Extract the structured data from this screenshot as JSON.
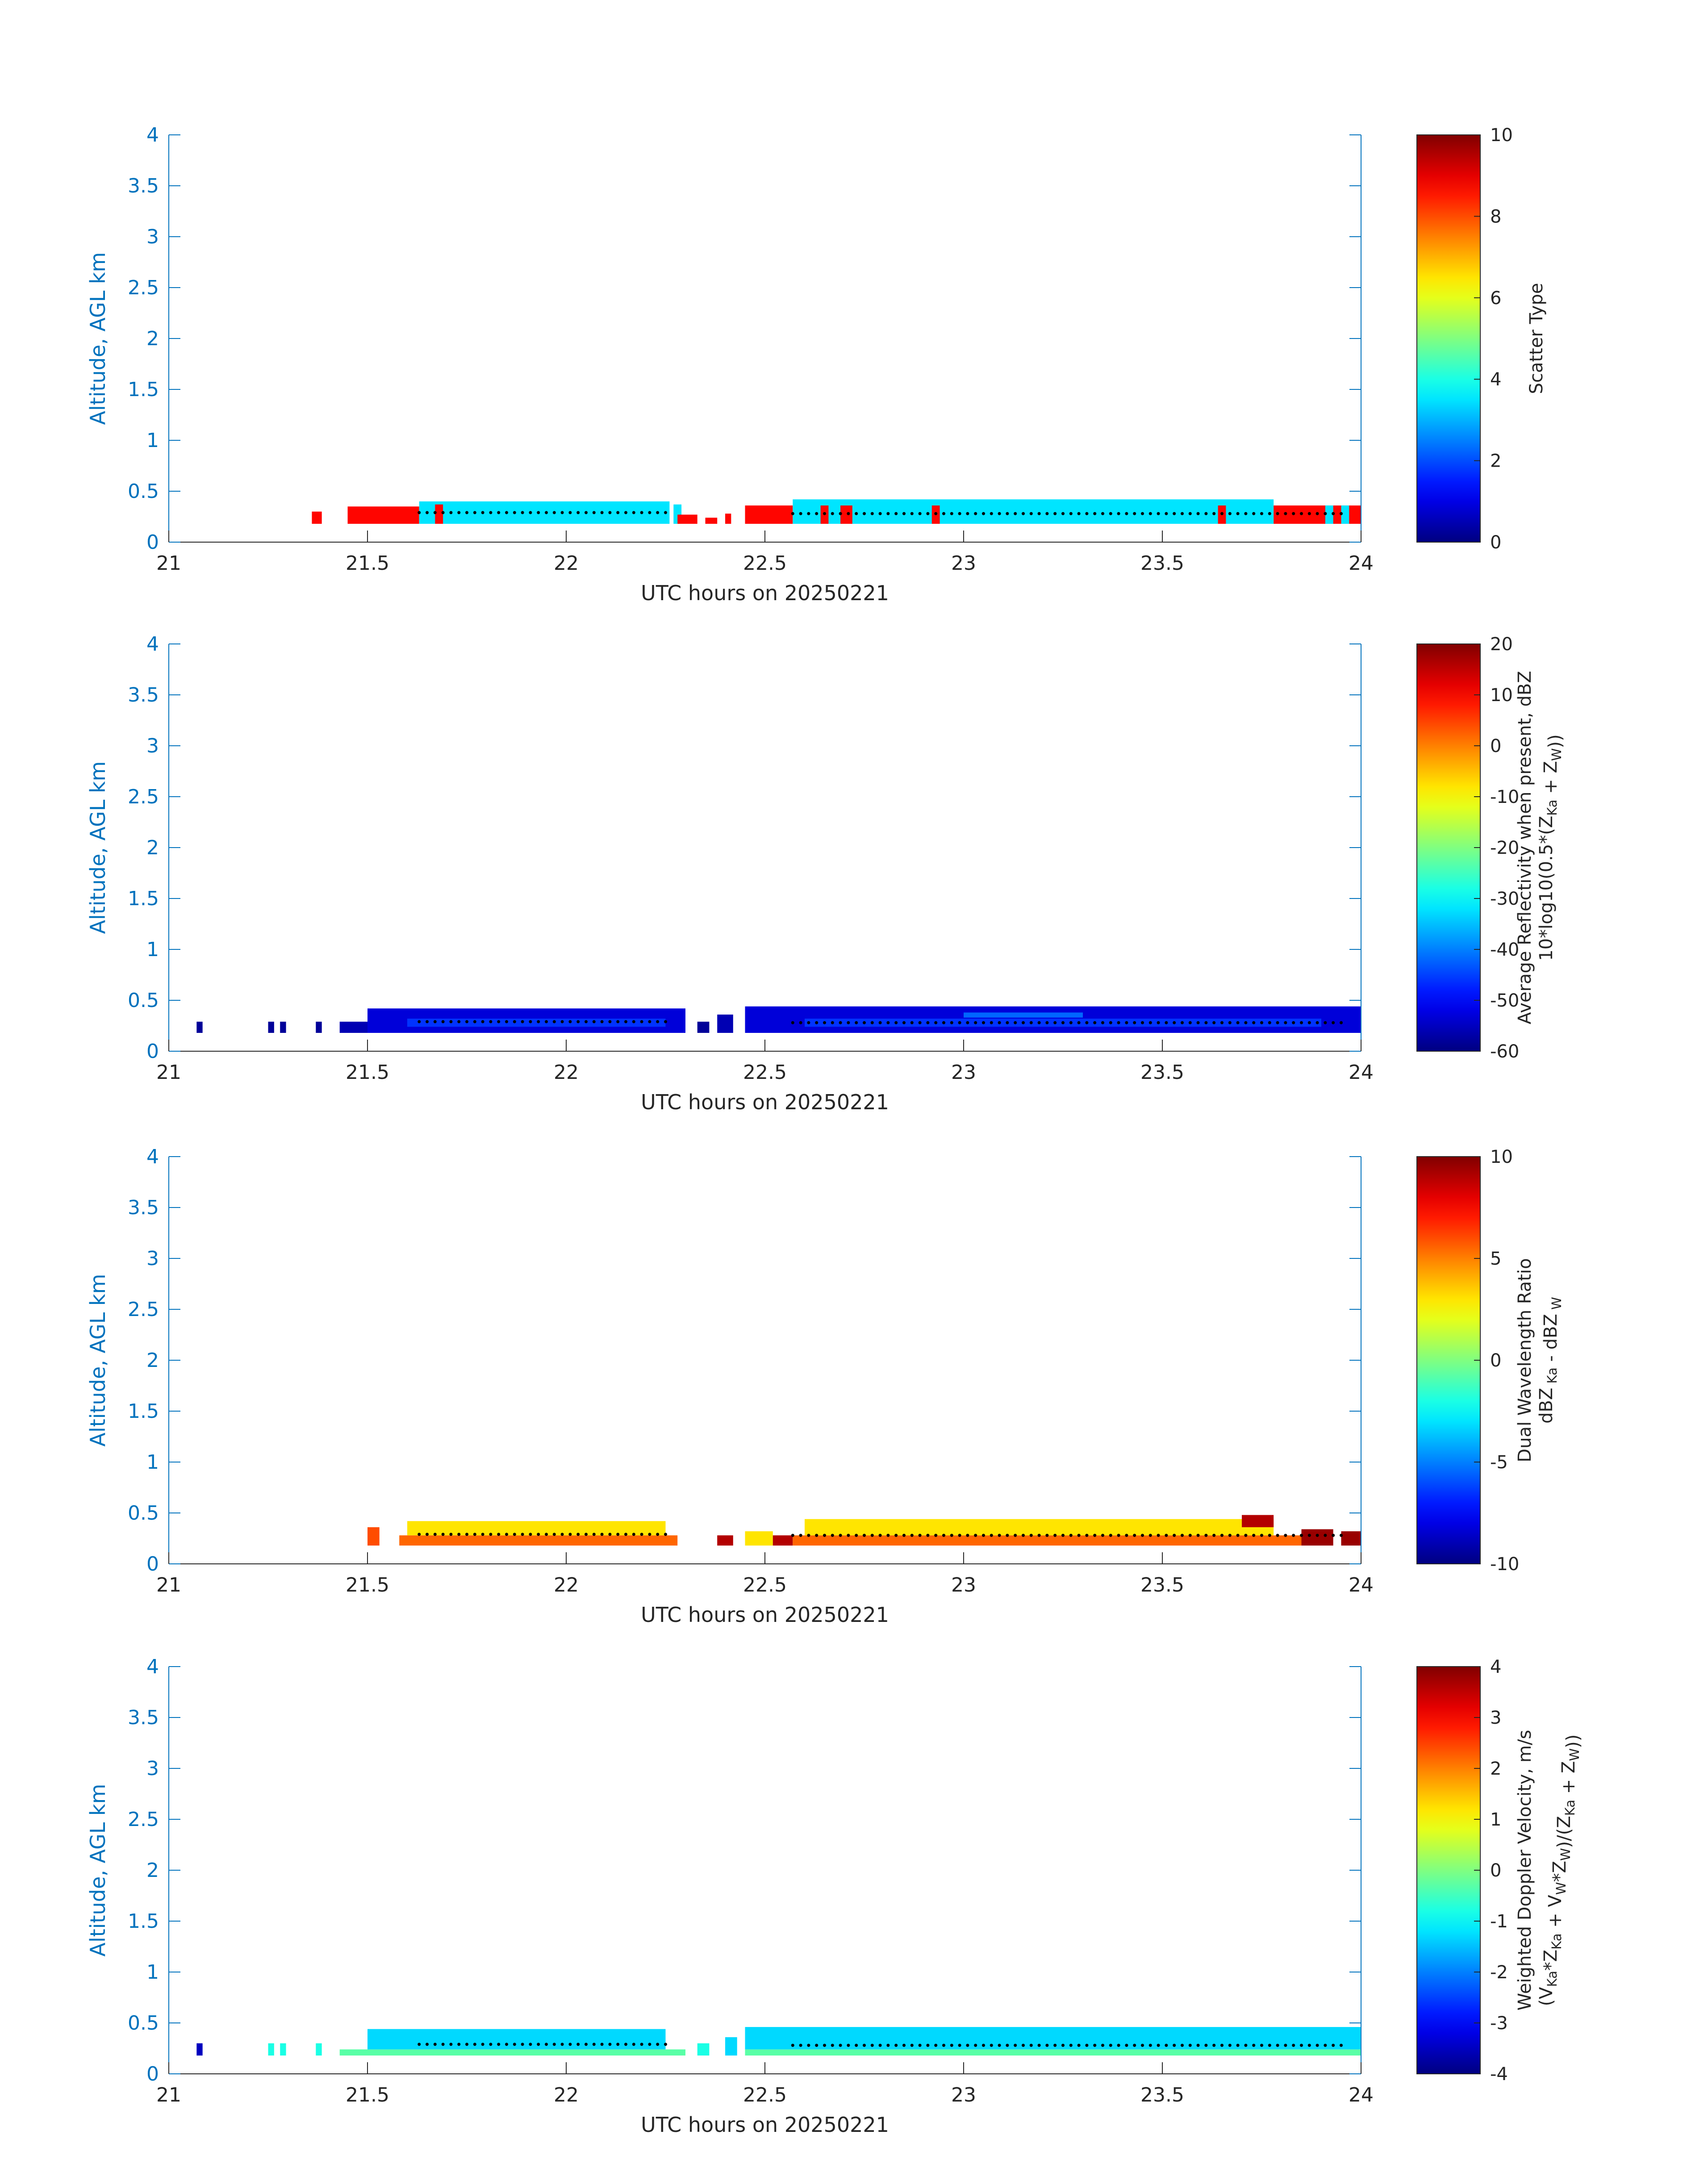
{
  "chart_data": [
    {
      "type": "heatmap",
      "xlabel": "UTC hours on 20250221",
      "ylabel": "Altitude, AGL km",
      "xlim": [
        21,
        24
      ],
      "ylim": [
        0,
        4
      ],
      "xticks": [
        "21",
        "21.5",
        "22",
        "22.5",
        "23",
        "23.5",
        "24"
      ],
      "yticks": [
        "0",
        "0.5",
        "1",
        "1.5",
        "2",
        "2.5",
        "3",
        "3.5",
        "4"
      ],
      "colorbar": {
        "colormap": "jet",
        "range": [
          0,
          10
        ],
        "ticks": [
          "0",
          "2",
          "4",
          "6",
          "8",
          "10"
        ],
        "label_lines": [
          [
            {
              "t": "Scatter Type"
            }
          ]
        ]
      },
      "segments": [
        {
          "x0": 21.36,
          "x1": 21.385,
          "bottom": 0.18,
          "top": 0.3,
          "value": 8.7
        },
        {
          "x0": 21.45,
          "x1": 21.63,
          "bottom": 0.18,
          "top": 0.35,
          "value": 8.7
        },
        {
          "x0": 21.63,
          "x1": 22.26,
          "bottom": 0.18,
          "top": 0.4,
          "value": 3.5
        },
        {
          "x0": 21.67,
          "x1": 21.69,
          "bottom": 0.18,
          "top": 0.37,
          "value": 8.7
        },
        {
          "x0": 22.27,
          "x1": 22.29,
          "bottom": 0.18,
          "top": 0.37,
          "value": 3.5
        },
        {
          "x0": 22.28,
          "x1": 22.33,
          "bottom": 0.18,
          "top": 0.27,
          "value": 8.7
        },
        {
          "x0": 22.35,
          "x1": 22.38,
          "bottom": 0.18,
          "top": 0.24,
          "value": 8.7
        },
        {
          "x0": 22.4,
          "x1": 22.415,
          "bottom": 0.18,
          "top": 0.28,
          "value": 8.7
        },
        {
          "x0": 22.45,
          "x1": 22.57,
          "bottom": 0.18,
          "top": 0.36,
          "value": 8.7
        },
        {
          "x0": 22.57,
          "x1": 23.78,
          "bottom": 0.18,
          "top": 0.42,
          "value": 3.5
        },
        {
          "x0": 22.64,
          "x1": 22.66,
          "bottom": 0.18,
          "top": 0.36,
          "value": 8.7
        },
        {
          "x0": 22.69,
          "x1": 22.72,
          "bottom": 0.18,
          "top": 0.36,
          "value": 8.7
        },
        {
          "x0": 22.92,
          "x1": 22.94,
          "bottom": 0.18,
          "top": 0.36,
          "value": 8.7
        },
        {
          "x0": 23.64,
          "x1": 23.66,
          "bottom": 0.18,
          "top": 0.36,
          "value": 8.7
        },
        {
          "x0": 23.78,
          "x1": 24.0,
          "bottom": 0.18,
          "top": 0.36,
          "value": 8.7
        },
        {
          "x0": 23.91,
          "x1": 23.93,
          "bottom": 0.18,
          "top": 0.36,
          "value": 3.5
        },
        {
          "x0": 23.95,
          "x1": 23.97,
          "bottom": 0.18,
          "top": 0.36,
          "value": 3.5
        }
      ],
      "mean_height": [
        {
          "x0": 21.63,
          "x1": 22.26,
          "y": 0.29
        },
        {
          "x0": 22.57,
          "x1": 23.95,
          "y": 0.28
        }
      ]
    },
    {
      "type": "heatmap",
      "xlabel": "UTC hours on 20250221",
      "ylabel": "Altitude, AGL km",
      "xlim": [
        21,
        24
      ],
      "ylim": [
        0,
        4
      ],
      "xticks": [
        "21",
        "21.5",
        "22",
        "22.5",
        "23",
        "23.5",
        "24"
      ],
      "yticks": [
        "0",
        "0.5",
        "1",
        "1.5",
        "2",
        "2.5",
        "3",
        "3.5",
        "4"
      ],
      "colorbar": {
        "colormap": "jet",
        "range": [
          -60,
          20
        ],
        "ticks": [
          "-60",
          "-50",
          "-40",
          "-30",
          "-20",
          "-10",
          "0",
          "10",
          "20"
        ],
        "label_lines": [
          [
            {
              "t": "Average Reflectivity when present, dBZ"
            }
          ],
          [
            {
              "t": "10*log10(0.5*(Z"
            },
            {
              "t": "Ka",
              "sub": true
            },
            {
              "t": " + Z"
            },
            {
              "t": "W",
              "sub": true
            },
            {
              "t": "))"
            }
          ]
        ]
      },
      "segments": [
        {
          "x0": 21.07,
          "x1": 21.085,
          "bottom": 0.18,
          "top": 0.29,
          "value": -58
        },
        {
          "x0": 21.25,
          "x1": 21.265,
          "bottom": 0.18,
          "top": 0.29,
          "value": -58
        },
        {
          "x0": 21.28,
          "x1": 21.295,
          "bottom": 0.18,
          "top": 0.29,
          "value": -58
        },
        {
          "x0": 21.37,
          "x1": 21.385,
          "bottom": 0.18,
          "top": 0.29,
          "value": -58
        },
        {
          "x0": 21.43,
          "x1": 21.5,
          "bottom": 0.18,
          "top": 0.29,
          "value": -56
        },
        {
          "x0": 21.5,
          "x1": 22.3,
          "bottom": 0.18,
          "top": 0.42,
          "value": -53
        },
        {
          "x0": 21.6,
          "x1": 22.25,
          "bottom": 0.24,
          "top": 0.32,
          "value": -46
        },
        {
          "x0": 22.33,
          "x1": 22.36,
          "bottom": 0.18,
          "top": 0.29,
          "value": -58
        },
        {
          "x0": 22.38,
          "x1": 22.42,
          "bottom": 0.18,
          "top": 0.36,
          "value": -56
        },
        {
          "x0": 22.45,
          "x1": 24.0,
          "bottom": 0.18,
          "top": 0.44,
          "value": -53
        },
        {
          "x0": 22.6,
          "x1": 23.9,
          "bottom": 0.24,
          "top": 0.32,
          "value": -46
        },
        {
          "x0": 23.0,
          "x1": 23.3,
          "bottom": 0.33,
          "top": 0.38,
          "value": -42
        }
      ],
      "mean_height": [
        {
          "x0": 21.63,
          "x1": 22.26,
          "y": 0.29
        },
        {
          "x0": 22.57,
          "x1": 23.95,
          "y": 0.28
        }
      ]
    },
    {
      "type": "heatmap",
      "xlabel": "UTC hours on 20250221",
      "ylabel": "Altitude, AGL km",
      "xlim": [
        21,
        24
      ],
      "ylim": [
        0,
        4
      ],
      "xticks": [
        "21",
        "21.5",
        "22",
        "22.5",
        "23",
        "23.5",
        "24"
      ],
      "yticks": [
        "0",
        "0.5",
        "1",
        "1.5",
        "2",
        "2.5",
        "3",
        "3.5",
        "4"
      ],
      "colorbar": {
        "colormap": "jet",
        "range": [
          -10,
          10
        ],
        "ticks": [
          "-10",
          "-5",
          "0",
          "5",
          "10"
        ],
        "label_lines": [
          [
            {
              "t": "Dual Wavelength Ratio"
            }
          ],
          [
            {
              "t": "dBZ"
            },
            {
              "t": " Ka",
              "sub": true
            },
            {
              "t": " - dBZ"
            },
            {
              "t": " W",
              "sub": true
            }
          ]
        ]
      },
      "segments": [
        {
          "x0": 21.5,
          "x1": 21.53,
          "bottom": 0.18,
          "top": 0.36,
          "value": 6
        },
        {
          "x0": 21.58,
          "x1": 22.28,
          "bottom": 0.18,
          "top": 0.28,
          "value": 5.5
        },
        {
          "x0": 21.6,
          "x1": 22.25,
          "bottom": 0.28,
          "top": 0.42,
          "value": 3
        },
        {
          "x0": 22.38,
          "x1": 22.42,
          "bottom": 0.18,
          "top": 0.28,
          "value": 9
        },
        {
          "x0": 22.45,
          "x1": 22.52,
          "bottom": 0.18,
          "top": 0.32,
          "value": 3
        },
        {
          "x0": 22.52,
          "x1": 22.57,
          "bottom": 0.18,
          "top": 0.28,
          "value": 9
        },
        {
          "x0": 22.57,
          "x1": 23.85,
          "bottom": 0.18,
          "top": 0.28,
          "value": 5.5
        },
        {
          "x0": 22.6,
          "x1": 23.78,
          "bottom": 0.28,
          "top": 0.44,
          "value": 3
        },
        {
          "x0": 23.7,
          "x1": 23.78,
          "bottom": 0.36,
          "top": 0.48,
          "value": 9
        },
        {
          "x0": 23.85,
          "x1": 23.93,
          "bottom": 0.18,
          "top": 0.34,
          "value": 9.5
        },
        {
          "x0": 23.95,
          "x1": 24.0,
          "bottom": 0.18,
          "top": 0.32,
          "value": 9.5
        }
      ],
      "mean_height": [
        {
          "x0": 21.63,
          "x1": 22.26,
          "y": 0.29
        },
        {
          "x0": 22.57,
          "x1": 23.95,
          "y": 0.28
        }
      ]
    },
    {
      "type": "heatmap",
      "xlabel": "UTC hours on 20250221",
      "ylabel": "Altitude, AGL km",
      "xlim": [
        21,
        24
      ],
      "ylim": [
        0,
        4
      ],
      "xticks": [
        "21",
        "21.5",
        "22",
        "22.5",
        "23",
        "23.5",
        "24"
      ],
      "yticks": [
        "0",
        "0.5",
        "1",
        "1.5",
        "2",
        "2.5",
        "3",
        "3.5",
        "4"
      ],
      "colorbar": {
        "colormap": "jet",
        "range": [
          -4,
          4
        ],
        "ticks": [
          "-4",
          "-3",
          "-2",
          "-1",
          "0",
          "1",
          "2",
          "3",
          "4"
        ],
        "label_lines": [
          [
            {
              "t": "Weighted Doppler Velocity, m/s"
            }
          ],
          [
            {
              "t": "(V"
            },
            {
              "t": "Ka",
              "sub": true
            },
            {
              "t": "*Z"
            },
            {
              "t": "Ka",
              "sub": true
            },
            {
              "t": " + V"
            },
            {
              "t": "W",
              "sub": true
            },
            {
              "t": "*Z"
            },
            {
              "t": "W",
              "sub": true
            },
            {
              "t": ")/(Z"
            },
            {
              "t": "Ka",
              "sub": true
            },
            {
              "t": " + Z"
            },
            {
              "t": "W",
              "sub": true
            },
            {
              "t": "))"
            }
          ]
        ]
      },
      "segments": [
        {
          "x0": 21.07,
          "x1": 21.085,
          "bottom": 0.18,
          "top": 0.3,
          "value": -3.5
        },
        {
          "x0": 21.25,
          "x1": 21.265,
          "bottom": 0.18,
          "top": 0.3,
          "value": -0.8
        },
        {
          "x0": 21.28,
          "x1": 21.295,
          "bottom": 0.18,
          "top": 0.3,
          "value": -0.8
        },
        {
          "x0": 21.37,
          "x1": 21.385,
          "bottom": 0.18,
          "top": 0.3,
          "value": -0.8
        },
        {
          "x0": 21.43,
          "x1": 22.3,
          "bottom": 0.18,
          "top": 0.24,
          "value": -0.3
        },
        {
          "x0": 21.5,
          "x1": 22.25,
          "bottom": 0.24,
          "top": 0.44,
          "value": -1.3
        },
        {
          "x0": 22.33,
          "x1": 22.36,
          "bottom": 0.18,
          "top": 0.3,
          "value": -0.8
        },
        {
          "x0": 22.4,
          "x1": 22.43,
          "bottom": 0.18,
          "top": 0.36,
          "value": -1.3
        },
        {
          "x0": 22.45,
          "x1": 24.0,
          "bottom": 0.18,
          "top": 0.24,
          "value": -0.3
        },
        {
          "x0": 22.45,
          "x1": 24.0,
          "bottom": 0.24,
          "top": 0.46,
          "value": -1.3
        }
      ],
      "mean_height": [
        {
          "x0": 21.63,
          "x1": 22.26,
          "y": 0.29
        },
        {
          "x0": 22.57,
          "x1": 23.95,
          "y": 0.28
        }
      ]
    }
  ]
}
